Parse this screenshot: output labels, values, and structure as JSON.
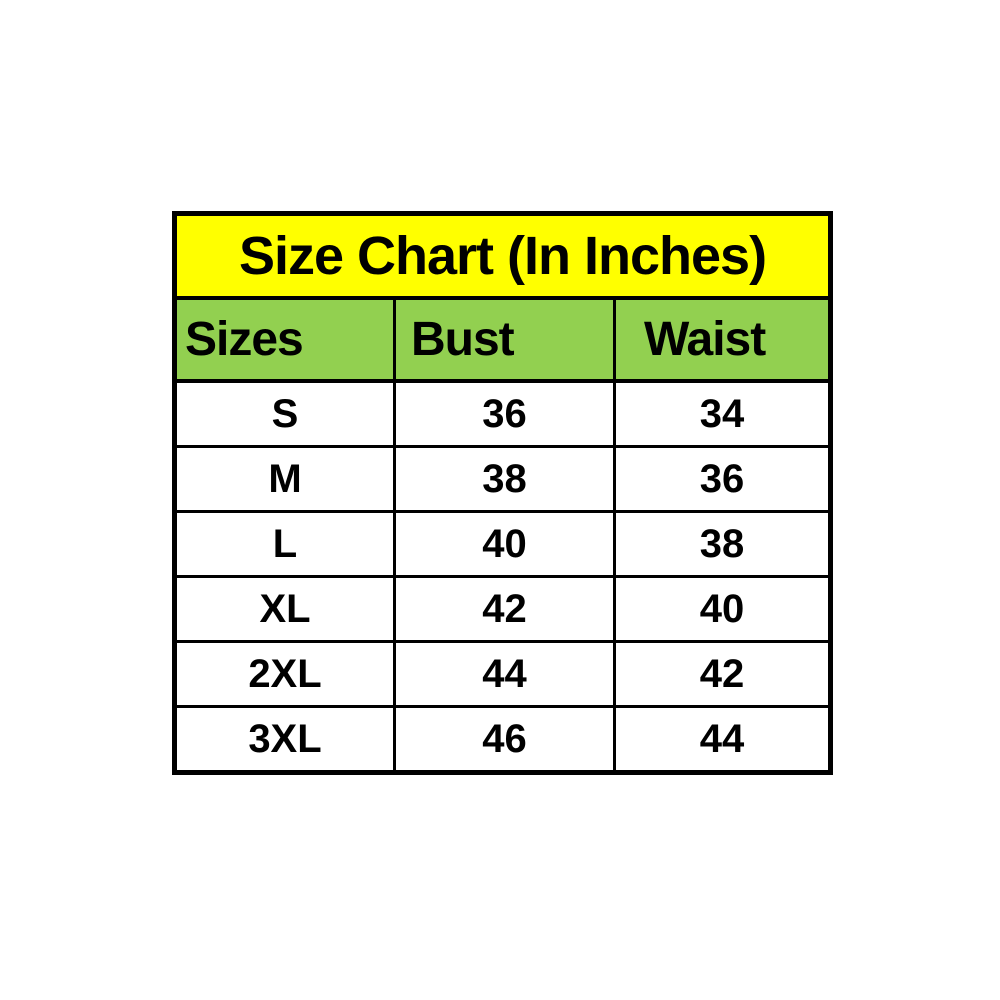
{
  "chart_data": {
    "type": "table",
    "title": "Size Chart (In Inches)",
    "columns": [
      "Sizes",
      "Bust",
      "Waist"
    ],
    "rows": [
      [
        "S",
        "36",
        "34"
      ],
      [
        "M",
        "38",
        "36"
      ],
      [
        "L",
        "40",
        "38"
      ],
      [
        "XL",
        "42",
        "40"
      ],
      [
        "2XL",
        "44",
        "42"
      ],
      [
        "3XL",
        "46",
        "44"
      ]
    ],
    "units": "inches"
  },
  "colors": {
    "title_background": "#ffff00",
    "header_background": "#92d050",
    "border": "#000000",
    "text": "#000000",
    "page_background": "#ffffff"
  }
}
